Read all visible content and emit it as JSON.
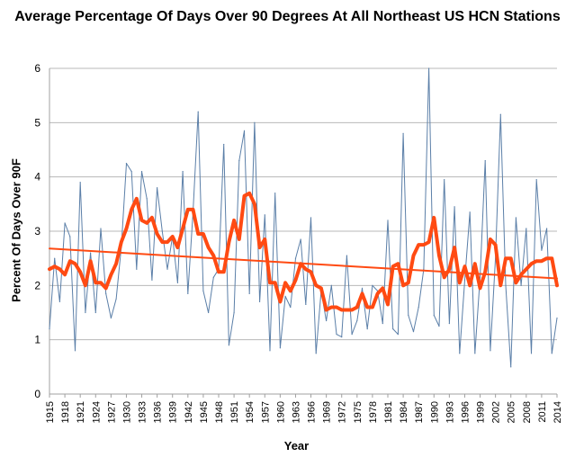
{
  "chart_data": {
    "type": "line",
    "title": "Average Percentage Of Days Over 90 Degrees At All Northeast US HCN Stations",
    "xlabel": "Year",
    "ylabel": "Percent Of Days Over 90F",
    "ylim": [
      0,
      6
    ],
    "yticks": [
      0,
      1,
      2,
      3,
      4,
      5,
      6
    ],
    "xlim": [
      1915,
      2014
    ],
    "xticks": [
      1915,
      1918,
      1921,
      1924,
      1927,
      1930,
      1933,
      1936,
      1939,
      1942,
      1945,
      1948,
      1951,
      1954,
      1957,
      1960,
      1963,
      1966,
      1969,
      1972,
      1975,
      1978,
      1981,
      1984,
      1987,
      1990,
      1993,
      1996,
      1999,
      2002,
      2005,
      2008,
      2011,
      2014
    ],
    "grid": true,
    "legend": "none",
    "x": [
      1915,
      1916,
      1917,
      1918,
      1919,
      1920,
      1921,
      1922,
      1923,
      1924,
      1925,
      1926,
      1927,
      1928,
      1929,
      1930,
      1931,
      1932,
      1933,
      1934,
      1935,
      1936,
      1937,
      1938,
      1939,
      1940,
      1941,
      1942,
      1943,
      1944,
      1945,
      1946,
      1947,
      1948,
      1949,
      1950,
      1951,
      1952,
      1953,
      1954,
      1955,
      1956,
      1957,
      1958,
      1959,
      1960,
      1961,
      1962,
      1963,
      1964,
      1965,
      1966,
      1967,
      1968,
      1969,
      1970,
      1971,
      1972,
      1973,
      1974,
      1975,
      1976,
      1977,
      1978,
      1979,
      1980,
      1981,
      1982,
      1983,
      1984,
      1985,
      1986,
      1987,
      1988,
      1989,
      1990,
      1991,
      1992,
      1993,
      1994,
      1995,
      1996,
      1997,
      1998,
      1999,
      2000,
      2001,
      2002,
      2003,
      2004,
      2005,
      2006,
      2007,
      2008,
      2009,
      2010,
      2011,
      2012,
      2013,
      2014
    ],
    "series": [
      {
        "role": "annual",
        "color": "#5b7fa8",
        "values": [
          1.2,
          2.5,
          1.7,
          3.15,
          2.9,
          0.8,
          3.9,
          1.5,
          2.6,
          1.5,
          3.05,
          1.85,
          1.4,
          1.75,
          2.7,
          4.25,
          4.1,
          2.3,
          4.1,
          3.6,
          2.1,
          3.8,
          3.0,
          2.3,
          2.9,
          2.05,
          4.1,
          1.85,
          3.35,
          5.2,
          1.9,
          1.5,
          2.15,
          2.3,
          4.6,
          0.9,
          1.5,
          4.3,
          4.85,
          1.85,
          5.0,
          1.7,
          3.3,
          0.8,
          3.7,
          0.85,
          1.8,
          1.6,
          2.5,
          2.85,
          1.65,
          3.25,
          0.75,
          1.9,
          1.35,
          2.0,
          1.1,
          1.05,
          2.55,
          1.1,
          1.35,
          1.95,
          1.2,
          2.0,
          1.9,
          1.3,
          3.2,
          1.2,
          1.1,
          4.8,
          1.45,
          1.15,
          1.6,
          2.3,
          6.0,
          1.45,
          1.25,
          3.95,
          1.3,
          3.45,
          0.75,
          2.1,
          3.35,
          0.75,
          2.15,
          4.3,
          0.8,
          2.5,
          5.15,
          2.0,
          0.5,
          3.25,
          2.0,
          3.05,
          0.75,
          3.95,
          2.65,
          3.05,
          0.75,
          1.4
        ]
      },
      {
        "role": "smoothed",
        "color": "#ff4a12",
        "values": [
          2.3,
          2.35,
          2.3,
          2.2,
          2.45,
          2.4,
          2.25,
          2.0,
          2.45,
          2.05,
          2.05,
          1.95,
          2.2,
          2.4,
          2.8,
          3.05,
          3.4,
          3.6,
          3.2,
          3.15,
          3.25,
          2.95,
          2.8,
          2.8,
          2.9,
          2.7,
          3.05,
          3.4,
          3.4,
          2.95,
          2.95,
          2.7,
          2.55,
          2.25,
          2.25,
          2.8,
          3.2,
          2.85,
          3.65,
          3.7,
          3.5,
          2.7,
          2.85,
          2.05,
          2.05,
          1.7,
          2.05,
          1.9,
          2.1,
          2.4,
          2.3,
          2.25,
          2.0,
          1.95,
          1.55,
          1.6,
          1.6,
          1.55,
          1.55,
          1.55,
          1.6,
          1.85,
          1.6,
          1.6,
          1.85,
          1.95,
          1.65,
          2.35,
          2.4,
          2.0,
          2.05,
          2.55,
          2.75,
          2.75,
          2.8,
          3.25,
          2.55,
          2.15,
          2.3,
          2.7,
          2.05,
          2.35,
          2.0,
          2.4,
          1.95,
          2.25,
          2.85,
          2.75,
          2.0,
          2.5,
          2.5,
          2.05,
          2.2,
          2.3,
          2.4,
          2.45,
          2.45,
          2.5,
          2.5,
          2.0
        ]
      },
      {
        "role": "trend",
        "color": "#ff4a12",
        "x": [
          1915,
          2014
        ],
        "values": [
          2.68,
          2.13
        ]
      }
    ]
  }
}
